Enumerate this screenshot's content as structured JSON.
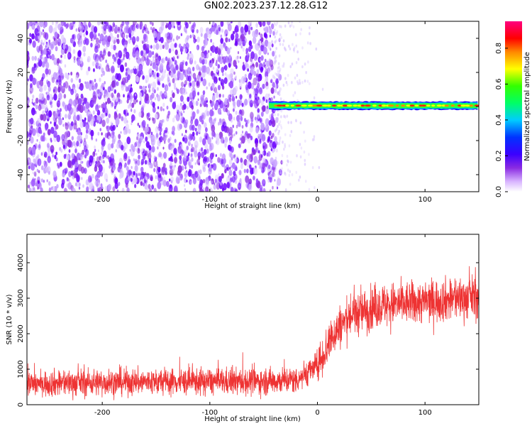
{
  "title": "GN02.2023.237.12.28.G12",
  "chart_data": [
    {
      "type": "heatmap",
      "xlabel": "Height of straight line (km)",
      "ylabel": "Frequency (Hz)",
      "xlim": [
        -270,
        150
      ],
      "ylim": [
        -50,
        50
      ],
      "x_ticks": [
        -200,
        -100,
        0,
        100
      ],
      "y_ticks": [
        -40,
        -20,
        0,
        20,
        40
      ],
      "colorbar": {
        "label": "Normalized spectral amplitude",
        "range": [
          0,
          0.95
        ],
        "ticks": [
          0.0,
          0.2,
          0.4,
          0.6,
          0.8
        ],
        "colormap": [
          "#ffffff",
          "#8a2be2",
          "#3b00ff",
          "#0000ff",
          "#00ffff",
          "#00ff00",
          "#ffff00",
          "#ff8000",
          "#ff0000",
          "#ff0080"
        ]
      },
      "regions": [
        {
          "description": "noise",
          "x_range": [
            -270,
            -40
          ],
          "y_range": [
            -50,
            50
          ],
          "amplitude": 0.1
        },
        {
          "description": "signal line",
          "x_range": [
            -45,
            150
          ],
          "frequency": 0.5,
          "amplitude": 0.85
        }
      ]
    },
    {
      "type": "line",
      "xlabel": "Height of straight line (km)",
      "ylabel": "SNR (10 * v/v)",
      "xlim": [
        -270,
        150
      ],
      "ylim": [
        0,
        4800
      ],
      "x_ticks": [
        -200,
        -100,
        0,
        100
      ],
      "y_ticks": [
        0,
        1000,
        2000,
        3000,
        4000
      ],
      "series": [
        {
          "color": "#ee3333",
          "trend": [
            {
              "x": -270,
              "y": 600
            },
            {
              "x": -150,
              "y": 650
            },
            {
              "x": -60,
              "y": 650
            },
            {
              "x": -20,
              "y": 700
            },
            {
              "x": 0,
              "y": 1100
            },
            {
              "x": 15,
              "y": 2000
            },
            {
              "x": 30,
              "y": 2500
            },
            {
              "x": 60,
              "y": 2800
            },
            {
              "x": 100,
              "y": 2900
            },
            {
              "x": 150,
              "y": 3050
            }
          ]
        }
      ]
    }
  ]
}
